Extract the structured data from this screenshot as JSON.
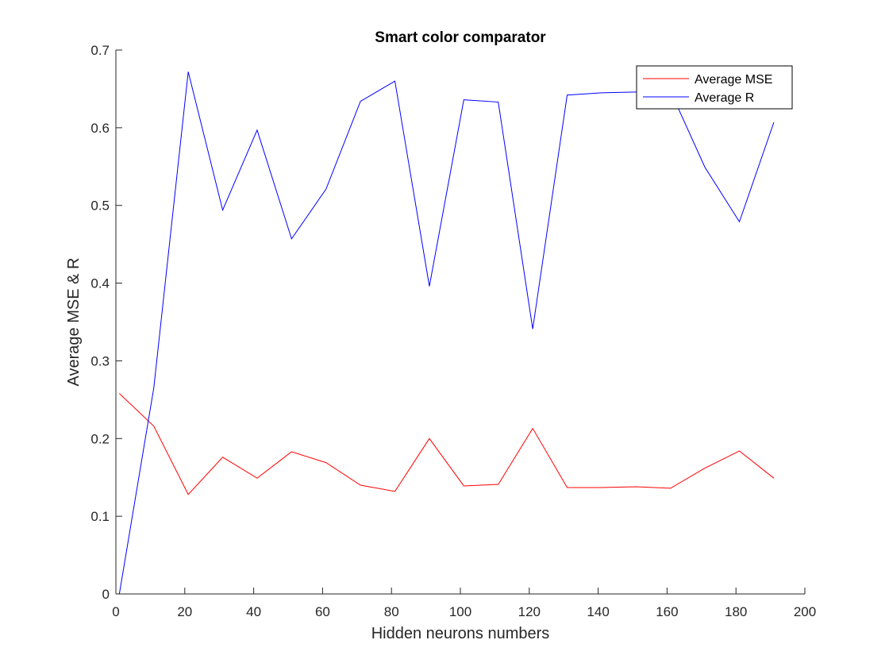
{
  "chart_data": {
    "type": "line",
    "title": "Smart color comparator",
    "xlabel": "Hidden neurons numbers",
    "ylabel": "Average MSE & R",
    "xlim": [
      0,
      200
    ],
    "ylim": [
      0,
      0.7
    ],
    "xticks": [
      0,
      20,
      40,
      60,
      80,
      100,
      120,
      140,
      160,
      180,
      200
    ],
    "yticks": [
      0,
      0.1,
      0.2,
      0.3,
      0.4,
      0.5,
      0.6,
      0.7
    ],
    "xtick_labels": [
      "0",
      "20",
      "40",
      "60",
      "80",
      "100",
      "120",
      "140",
      "160",
      "180",
      "200"
    ],
    "ytick_labels": [
      "0",
      "0.1",
      "0.2",
      "0.3",
      "0.4",
      "0.5",
      "0.6",
      "0.7"
    ],
    "grid": false,
    "legend_position": "top-right",
    "x": [
      1,
      11,
      21,
      31,
      41,
      51,
      61,
      71,
      81,
      91,
      101,
      111,
      121,
      131,
      141,
      151,
      161,
      171,
      181,
      191
    ],
    "series": [
      {
        "name": "Average MSE",
        "color": "#ff0000",
        "values": [
          0.258,
          0.216,
          0.128,
          0.176,
          0.149,
          0.183,
          0.169,
          0.14,
          0.132,
          0.2,
          0.139,
          0.141,
          0.213,
          0.137,
          0.137,
          0.138,
          0.136,
          0.162,
          0.184,
          0.149
        ]
      },
      {
        "name": "Average R",
        "color": "#0000ff",
        "values": [
          0.0,
          0.265,
          0.672,
          0.494,
          0.597,
          0.457,
          0.521,
          0.634,
          0.66,
          0.396,
          0.636,
          0.633,
          0.341,
          0.642,
          0.645,
          0.646,
          0.647,
          0.549,
          0.479,
          0.607
        ]
      }
    ]
  }
}
